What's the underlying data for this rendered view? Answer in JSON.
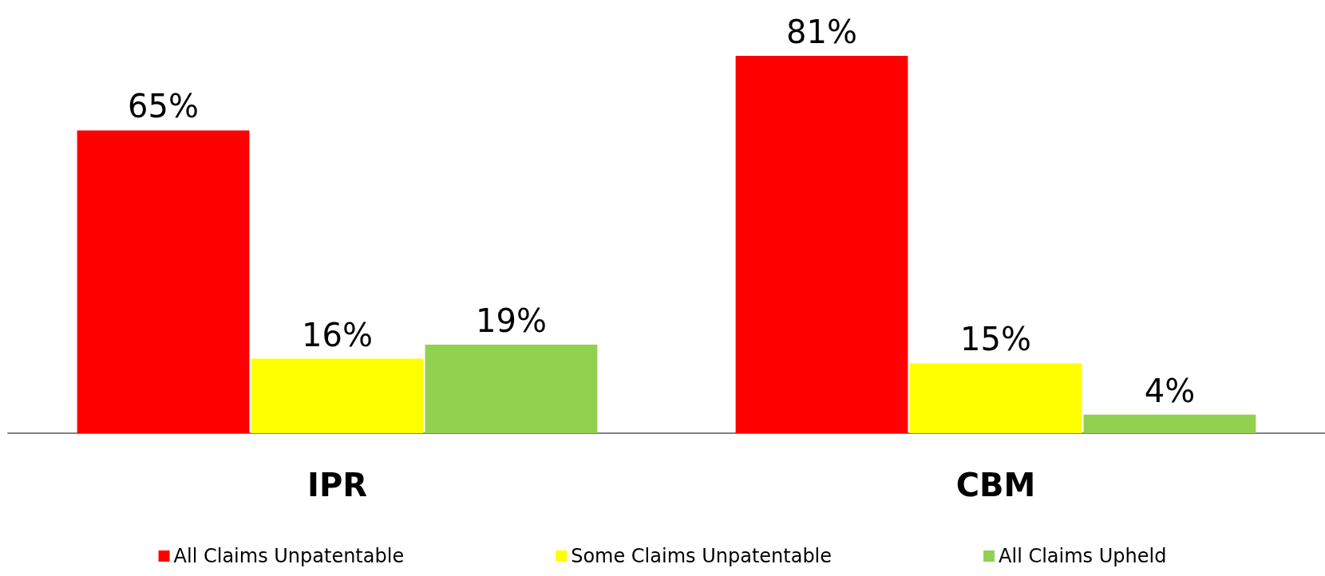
{
  "chart_data": {
    "type": "bar",
    "categories": [
      "IPR",
      "CBM"
    ],
    "series": [
      {
        "name": "All Claims Unpatentable",
        "color": "#ff0000",
        "values": [
          65,
          81
        ],
        "value_labels": [
          "65%",
          "81%"
        ]
      },
      {
        "name": "Some Claims Unpatentable",
        "color": "#ffff00",
        "values": [
          16,
          15
        ],
        "value_labels": [
          "16%",
          "15%"
        ]
      },
      {
        "name": "All Claims Upheld",
        "color": "#92d050",
        "values": [
          19,
          4
        ],
        "value_labels": [
          "19%",
          "4%"
        ]
      }
    ],
    "legend": "bottom"
  }
}
